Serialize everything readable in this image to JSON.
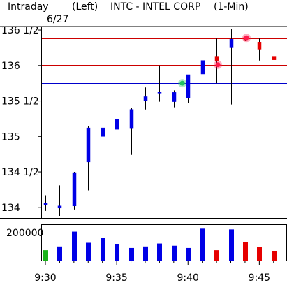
{
  "header": {
    "mode": "Intraday",
    "axis_side": "(Left)",
    "symbol_title": "INTC - INTEL CORP",
    "interval": "(1-Min)",
    "date": "6/27"
  },
  "colors": {
    "up": "#0000e6",
    "down": "#e60000",
    "up_volume_first": "#19b219",
    "resistance_line": "#cc0000",
    "support_line": "#0000cc",
    "marker_green": "#22c063",
    "marker_red": "#ff1a4b"
  },
  "chart_data": {
    "type": "candlestick",
    "price_ticks": [
      "134",
      "134 1/2",
      "135",
      "135 1/2",
      "136",
      "136 1/2"
    ],
    "price_tick_values": [
      134,
      134.5,
      135,
      135.5,
      136,
      136.5
    ],
    "ylim": [
      133.87,
      136.53
    ],
    "time_ticks": [
      "9:30",
      "9:35",
      "9:40",
      "9:45"
    ],
    "time_tick_minutes": [
      0,
      5,
      10,
      15
    ],
    "xlim_minutes": [
      0,
      16.5
    ],
    "volume_tick": "200000",
    "volume_ylim": [
      0,
      240000
    ],
    "reference_lines": [
      {
        "value": 136.38,
        "color": "red"
      },
      {
        "value": 136.01,
        "color": "red"
      },
      {
        "value": 135.75,
        "color": "blue"
      }
    ],
    "markers": [
      {
        "minute": 9.6,
        "price": 135.75,
        "color": "green"
      },
      {
        "minute": 12.1,
        "price": 136.01,
        "color": "red"
      },
      {
        "minute": 14.1,
        "price": 136.39,
        "color": "red"
      }
    ],
    "candles": [
      {
        "minute": 0,
        "open": 134.06,
        "high": 134.17,
        "low": 133.95,
        "close": 134.06,
        "volume": 70000
      },
      {
        "minute": 1,
        "open": 133.99,
        "high": 134.31,
        "low": 133.88,
        "close": 134.02,
        "volume": 95000
      },
      {
        "minute": 2,
        "open": 134.02,
        "high": 134.5,
        "low": 133.97,
        "close": 134.49,
        "volume": 195000
      },
      {
        "minute": 3,
        "open": 134.64,
        "high": 135.15,
        "low": 134.24,
        "close": 135.12,
        "volume": 120000
      },
      {
        "minute": 4,
        "open": 135.0,
        "high": 135.16,
        "low": 134.95,
        "close": 135.12,
        "volume": 155000
      },
      {
        "minute": 5,
        "open": 135.1,
        "high": 135.27,
        "low": 135.01,
        "close": 135.24,
        "volume": 110000
      },
      {
        "minute": 6,
        "open": 135.12,
        "high": 135.4,
        "low": 134.74,
        "close": 135.38,
        "volume": 85000
      },
      {
        "minute": 7,
        "open": 135.5,
        "high": 135.69,
        "low": 135.38,
        "close": 135.56,
        "volume": 95000
      },
      {
        "minute": 8,
        "open": 135.63,
        "high": 136.0,
        "low": 135.49,
        "close": 135.63,
        "volume": 115000
      },
      {
        "minute": 9,
        "open": 135.49,
        "high": 135.65,
        "low": 135.41,
        "close": 135.62,
        "volume": 100000
      },
      {
        "minute": 10,
        "open": 135.54,
        "high": 135.87,
        "low": 135.47,
        "close": 135.87,
        "volume": 85000
      },
      {
        "minute": 11,
        "open": 135.88,
        "high": 136.13,
        "low": 135.49,
        "close": 136.07,
        "volume": 215000
      },
      {
        "minute": 12,
        "open": 136.13,
        "high": 136.38,
        "low": 135.75,
        "close": 136.07,
        "volume": 70000
      },
      {
        "minute": 13,
        "open": 136.25,
        "high": 136.52,
        "low": 135.45,
        "close": 136.37,
        "volume": 210000
      },
      {
        "minute": 14,
        "open": 136.4,
        "high": 136.41,
        "low": 136.35,
        "close": 136.36,
        "volume": 125000
      },
      {
        "minute": 15,
        "open": 136.33,
        "high": 136.38,
        "low": 136.07,
        "close": 136.23,
        "volume": 90000
      },
      {
        "minute": 16,
        "open": 136.13,
        "high": 136.19,
        "low": 136.02,
        "close": 136.08,
        "volume": 65000
      }
    ]
  }
}
